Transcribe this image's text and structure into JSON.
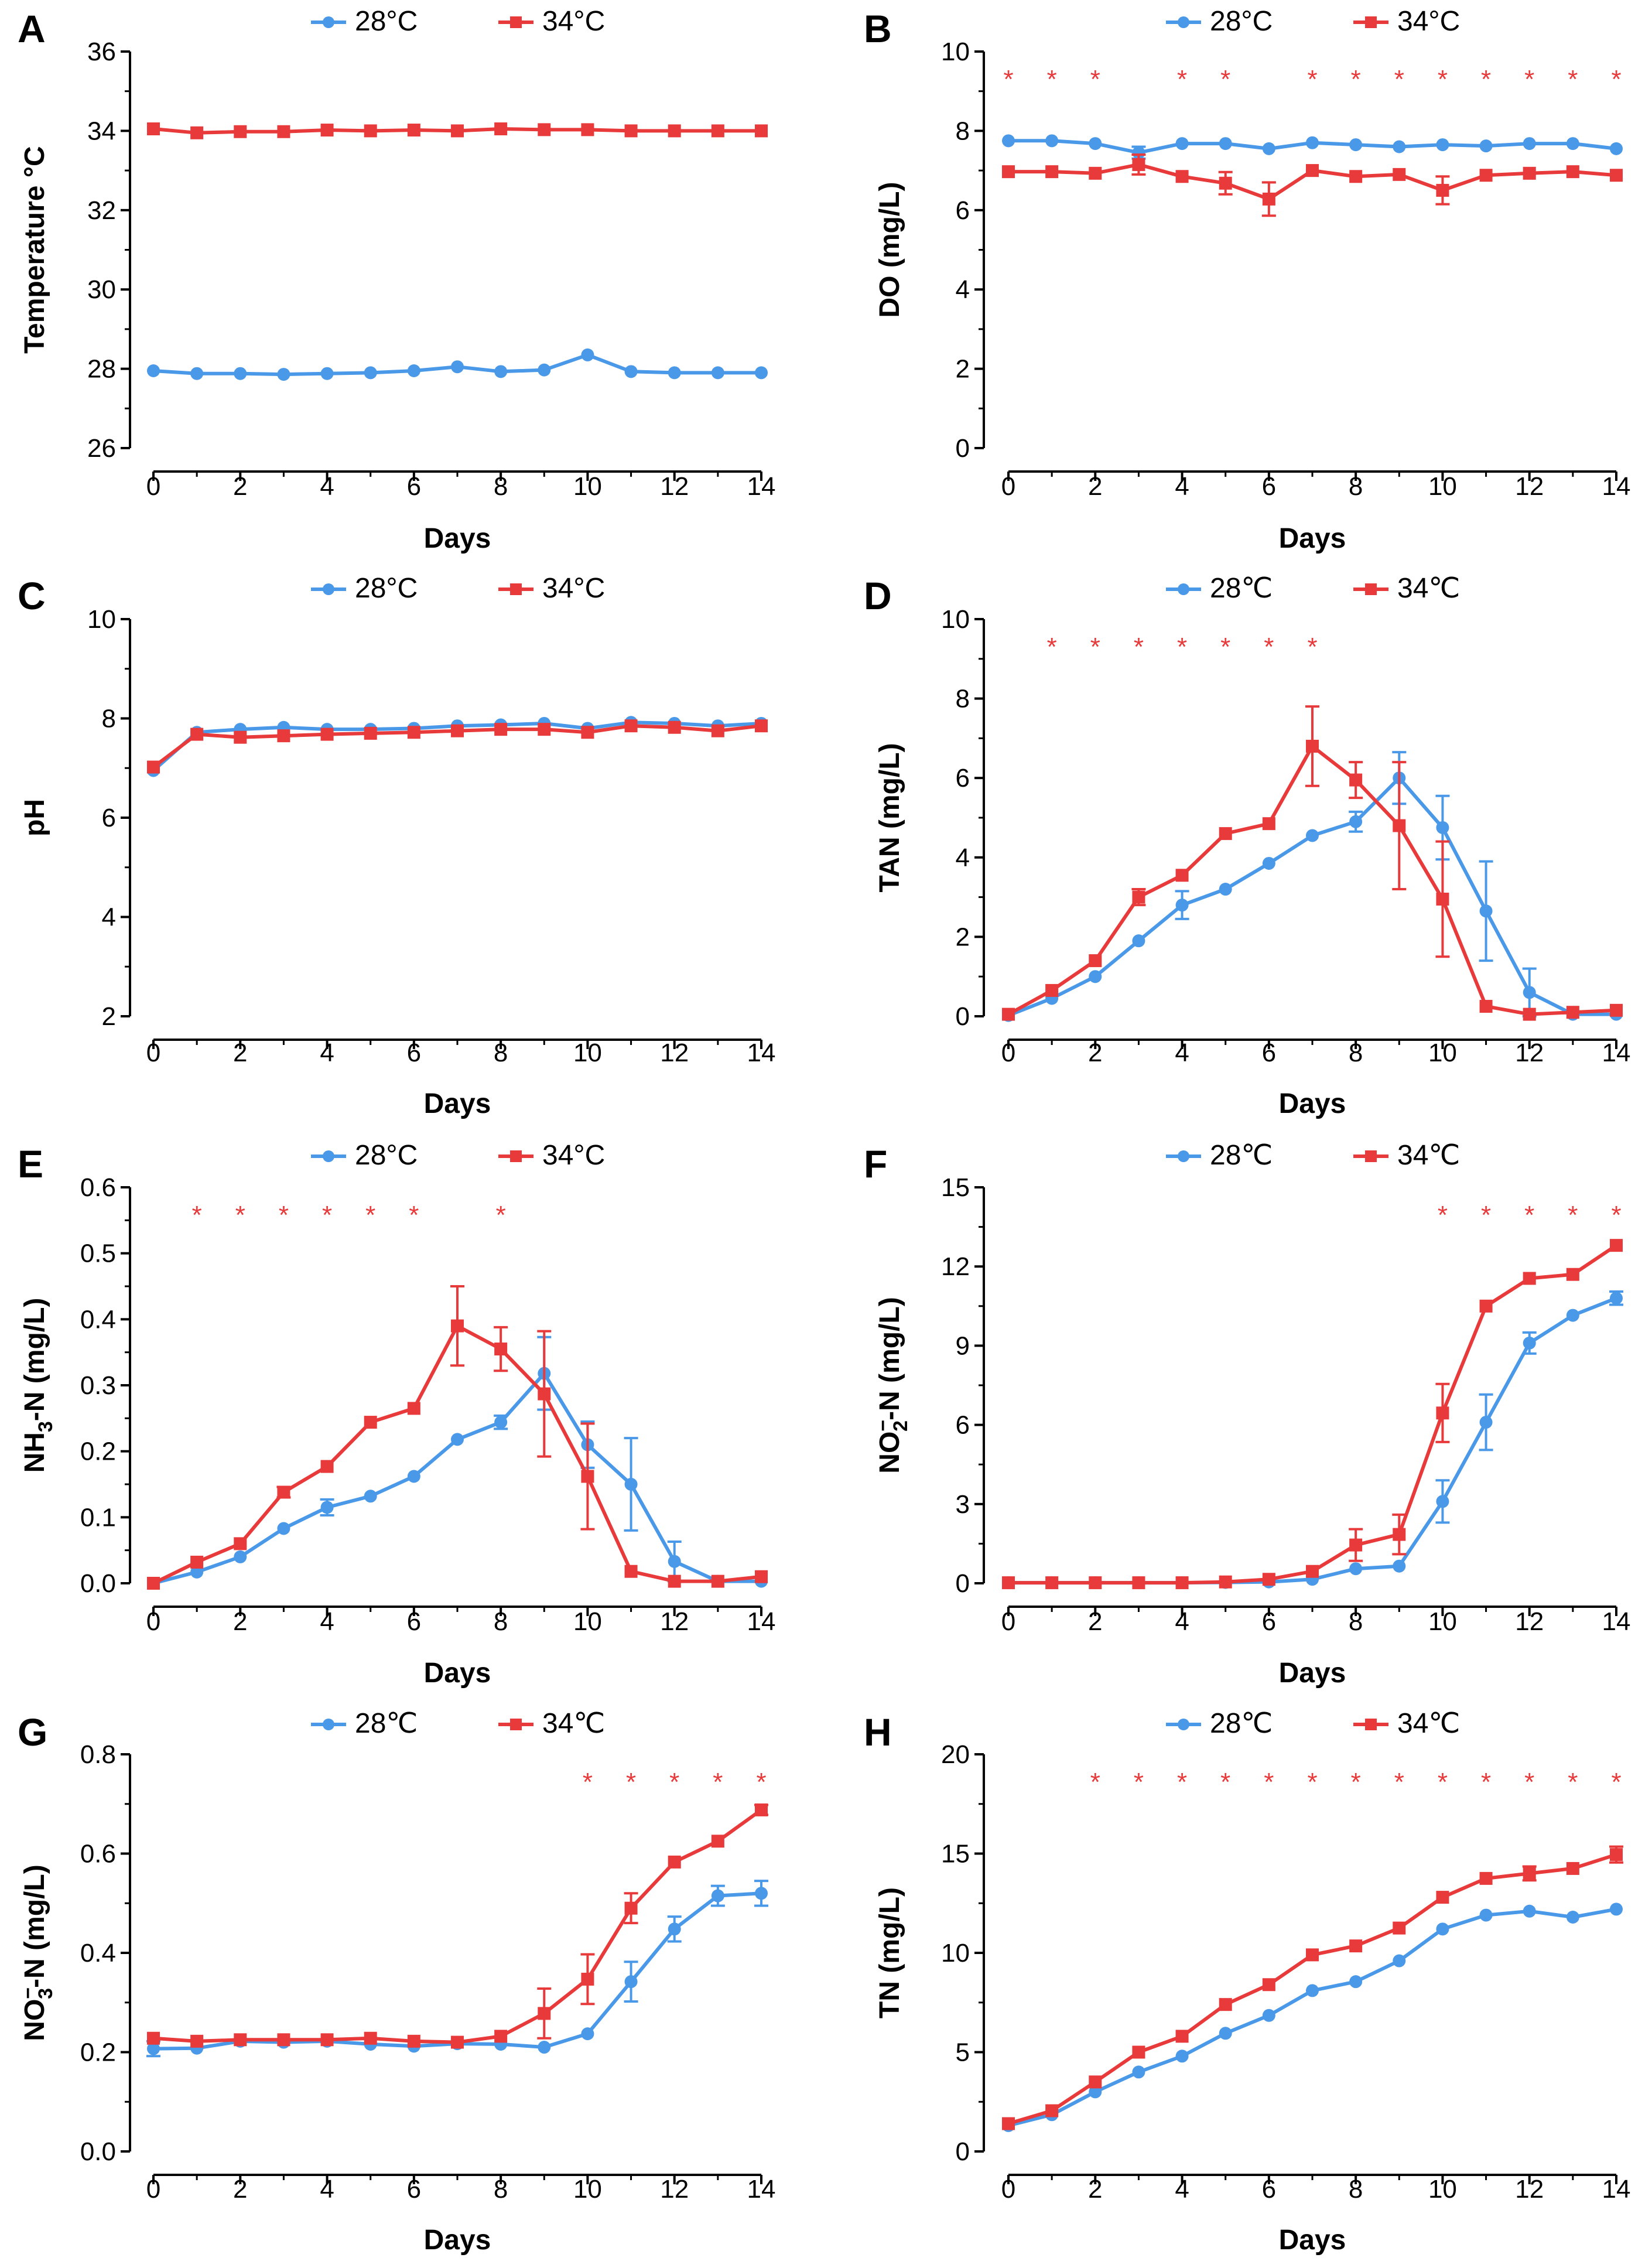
{
  "figure": {
    "xlabel": "Days",
    "colors": {
      "c28": "#4a98e8",
      "c34": "#e83a3a"
    }
  },
  "chart_data": [
    {
      "panel": "A",
      "type": "line",
      "xlabel": "Days",
      "ylabel": "Temperature °C",
      "xlim": [
        0,
        14
      ],
      "xticks": [
        0,
        2,
        4,
        6,
        8,
        10,
        12,
        14
      ],
      "ylim": [
        26,
        36
      ],
      "yticks": [
        "26",
        "28",
        "30",
        "32",
        "34",
        "36"
      ],
      "series": [
        {
          "name": "28°C",
          "color": "#4a98e8",
          "marker": "circle",
          "x": [
            0,
            1,
            2,
            3,
            4,
            5,
            6,
            7,
            8,
            9,
            10,
            11,
            12,
            13,
            14
          ],
          "y": [
            27.95,
            27.88,
            27.88,
            27.86,
            27.88,
            27.9,
            27.95,
            28.05,
            27.93,
            27.97,
            28.35,
            27.93,
            27.9,
            27.9,
            27.9
          ],
          "err": [
            0,
            0,
            0,
            0,
            0,
            0,
            0,
            0,
            0,
            0,
            0,
            0,
            0,
            0,
            0
          ]
        },
        {
          "name": "34°C",
          "color": "#e83a3a",
          "marker": "square",
          "x": [
            0,
            1,
            2,
            3,
            4,
            5,
            6,
            7,
            8,
            9,
            10,
            11,
            12,
            13,
            14
          ],
          "y": [
            34.05,
            33.95,
            33.98,
            33.98,
            34.02,
            34.0,
            34.02,
            34.0,
            34.05,
            34.03,
            34.03,
            34.0,
            34.0,
            34.0,
            34.0
          ],
          "err": [
            0,
            0,
            0,
            0,
            0,
            0,
            0,
            0,
            0,
            0,
            0,
            0,
            0,
            0,
            0
          ]
        }
      ],
      "significance_days": []
    },
    {
      "panel": "B",
      "type": "line",
      "xlabel": "Days",
      "ylabel": "DO (mg/L)",
      "xlim": [
        0,
        14
      ],
      "xticks": [
        0,
        2,
        4,
        6,
        8,
        10,
        12,
        14
      ],
      "ylim": [
        0,
        10
      ],
      "yticks": [
        "0",
        "2",
        "4",
        "6",
        "8",
        "10"
      ],
      "series": [
        {
          "name": "28°C",
          "color": "#4a98e8",
          "marker": "circle",
          "x": [
            0,
            1,
            2,
            3,
            4,
            5,
            6,
            7,
            8,
            9,
            10,
            11,
            12,
            13,
            14
          ],
          "y": [
            7.75,
            7.75,
            7.68,
            7.45,
            7.68,
            7.68,
            7.55,
            7.7,
            7.65,
            7.6,
            7.65,
            7.62,
            7.68,
            7.68,
            7.55
          ],
          "err": [
            0,
            0,
            0,
            0.15,
            0,
            0,
            0,
            0,
            0,
            0,
            0,
            0,
            0,
            0,
            0
          ]
        },
        {
          "name": "34°C",
          "color": "#e83a3a",
          "marker": "square",
          "x": [
            0,
            1,
            2,
            3,
            4,
            5,
            6,
            7,
            8,
            9,
            10,
            11,
            12,
            13,
            14
          ],
          "y": [
            6.97,
            6.97,
            6.93,
            7.15,
            6.85,
            6.68,
            6.28,
            7.0,
            6.85,
            6.9,
            6.5,
            6.88,
            6.93,
            6.97,
            6.88
          ],
          "err": [
            0,
            0,
            0,
            0.25,
            0,
            0.28,
            0.42,
            0,
            0,
            0,
            0.35,
            0,
            0,
            0,
            0
          ]
        }
      ],
      "significance_days": [
        0,
        1,
        2,
        4,
        5,
        7,
        8,
        9,
        10,
        11,
        12,
        13,
        14
      ]
    },
    {
      "panel": "C",
      "type": "line",
      "xlabel": "Days",
      "ylabel": "pH",
      "xlim": [
        0,
        14
      ],
      "xticks": [
        0,
        2,
        4,
        6,
        8,
        10,
        12,
        14
      ],
      "ylim": [
        2,
        10
      ],
      "yticks": [
        "2",
        "4",
        "6",
        "8",
        "10"
      ],
      "series": [
        {
          "name": "28°C",
          "color": "#4a98e8",
          "marker": "circle",
          "x": [
            0,
            1,
            2,
            3,
            4,
            5,
            6,
            7,
            8,
            9,
            10,
            11,
            12,
            13,
            14
          ],
          "y": [
            6.95,
            7.72,
            7.78,
            7.82,
            7.78,
            7.78,
            7.8,
            7.85,
            7.87,
            7.9,
            7.8,
            7.92,
            7.9,
            7.85,
            7.9
          ],
          "err": [
            0,
            0,
            0,
            0,
            0,
            0,
            0,
            0,
            0,
            0,
            0,
            0,
            0,
            0,
            0
          ]
        },
        {
          "name": "34°C",
          "color": "#e83a3a",
          "marker": "square",
          "x": [
            0,
            1,
            2,
            3,
            4,
            5,
            6,
            7,
            8,
            9,
            10,
            11,
            12,
            13,
            14
          ],
          "y": [
            7.02,
            7.68,
            7.62,
            7.65,
            7.68,
            7.7,
            7.72,
            7.75,
            7.78,
            7.78,
            7.72,
            7.85,
            7.82,
            7.75,
            7.85
          ],
          "err": [
            0,
            0,
            0,
            0,
            0,
            0,
            0,
            0,
            0,
            0,
            0,
            0,
            0,
            0,
            0
          ]
        }
      ],
      "significance_days": []
    },
    {
      "panel": "D",
      "type": "line",
      "xlabel": "Days",
      "ylabel": "TAN (mg/L)",
      "xlim": [
        0,
        14
      ],
      "xticks": [
        0,
        2,
        4,
        6,
        8,
        10,
        12,
        14
      ],
      "ylim": [
        0,
        10
      ],
      "yticks": [
        "0",
        "2",
        "4",
        "6",
        "8",
        "10"
      ],
      "series": [
        {
          "name": "28℃",
          "color": "#4a98e8",
          "marker": "circle",
          "x": [
            0,
            1,
            2,
            3,
            4,
            5,
            6,
            7,
            8,
            9,
            10,
            11,
            12,
            13,
            14
          ],
          "y": [
            0.02,
            0.45,
            1.0,
            1.9,
            2.8,
            3.2,
            3.85,
            4.55,
            4.9,
            6.0,
            4.75,
            2.65,
            0.6,
            0.05,
            0.05
          ],
          "err": [
            0,
            0,
            0,
            0,
            0.35,
            0,
            0,
            0,
            0.25,
            0.65,
            0.8,
            1.25,
            0.6,
            0,
            0
          ]
        },
        {
          "name": "34℃",
          "color": "#e83a3a",
          "marker": "square",
          "x": [
            0,
            1,
            2,
            3,
            4,
            5,
            6,
            7,
            8,
            9,
            10,
            11,
            12,
            13,
            14
          ],
          "y": [
            0.05,
            0.65,
            1.4,
            3.0,
            3.55,
            4.6,
            4.85,
            6.8,
            5.95,
            4.8,
            2.95,
            0.25,
            0.05,
            0.1,
            0.15
          ],
          "err": [
            0,
            0,
            0,
            0.2,
            0,
            0,
            0,
            1.0,
            0.45,
            1.6,
            1.45,
            0,
            0,
            0,
            0
          ]
        }
      ],
      "significance_days": [
        1,
        2,
        3,
        4,
        5,
        6,
        7
      ]
    },
    {
      "panel": "E",
      "type": "line",
      "xlabel": "Days",
      "ylabel": "NH3-N (mg/L)",
      "ylabel_main": "NH",
      "ylabel_sub": "3",
      "ylabel_rest": "-N (mg/L)",
      "xlim": [
        0,
        14
      ],
      "xticks": [
        0,
        2,
        4,
        6,
        8,
        10,
        12,
        14
      ],
      "ylim": [
        0,
        0.6
      ],
      "yticks": [
        "0.0",
        "0.1",
        "0.2",
        "0.3",
        "0.4",
        "0.5",
        "0.6"
      ],
      "series": [
        {
          "name": "28°C",
          "color": "#4a98e8",
          "marker": "circle",
          "x": [
            0,
            1,
            2,
            3,
            4,
            5,
            6,
            7,
            8,
            9,
            10,
            11,
            12,
            13,
            14
          ],
          "y": [
            0.0,
            0.017,
            0.04,
            0.083,
            0.115,
            0.132,
            0.162,
            0.218,
            0.244,
            0.318,
            0.21,
            0.15,
            0.033,
            0.003,
            0.003
          ],
          "err": [
            0,
            0,
            0,
            0,
            0.012,
            0,
            0,
            0,
            0.01,
            0.055,
            0.035,
            0.07,
            0.03,
            0,
            0
          ]
        },
        {
          "name": "34°C",
          "color": "#e83a3a",
          "marker": "square",
          "x": [
            0,
            1,
            2,
            3,
            4,
            5,
            6,
            7,
            8,
            9,
            10,
            11,
            12,
            13,
            14
          ],
          "y": [
            0.0,
            0.032,
            0.06,
            0.138,
            0.177,
            0.244,
            0.265,
            0.39,
            0.355,
            0.287,
            0.162,
            0.018,
            0.003,
            0.003,
            0.01
          ],
          "err": [
            0,
            0,
            0,
            0.008,
            0,
            0,
            0,
            0.06,
            0.033,
            0.095,
            0.08,
            0,
            0,
            0,
            0
          ]
        }
      ],
      "significance_days": [
        1,
        2,
        3,
        4,
        5,
        6,
        8
      ]
    },
    {
      "panel": "F",
      "type": "line",
      "xlabel": "Days",
      "ylabel": "NO2⁻-N (mg/L)",
      "ylabel_main": "NO",
      "ylabel_sub": "2",
      "ylabel_sup": "−",
      "ylabel_rest": "-N (mg/L)",
      "xlim": [
        0,
        14
      ],
      "xticks": [
        0,
        2,
        4,
        6,
        8,
        10,
        12,
        14
      ],
      "ylim": [
        0,
        15
      ],
      "yticks": [
        "0",
        "3",
        "6",
        "9",
        "12",
        "15"
      ],
      "series": [
        {
          "name": "28℃",
          "color": "#4a98e8",
          "marker": "circle",
          "x": [
            0,
            1,
            2,
            3,
            4,
            5,
            6,
            7,
            8,
            9,
            10,
            11,
            12,
            13,
            14
          ],
          "y": [
            0.02,
            0.02,
            0.02,
            0.02,
            0.02,
            0.03,
            0.05,
            0.15,
            0.55,
            0.65,
            3.1,
            6.1,
            9.1,
            10.15,
            10.8
          ],
          "err": [
            0,
            0,
            0,
            0,
            0,
            0,
            0,
            0,
            0,
            0,
            0.8,
            1.05,
            0.4,
            0,
            0.25
          ]
        },
        {
          "name": "34℃",
          "color": "#e83a3a",
          "marker": "square",
          "x": [
            0,
            1,
            2,
            3,
            4,
            5,
            6,
            7,
            8,
            9,
            10,
            11,
            12,
            13,
            14
          ],
          "y": [
            0.02,
            0.02,
            0.02,
            0.02,
            0.02,
            0.05,
            0.15,
            0.45,
            1.45,
            1.85,
            6.45,
            10.5,
            11.55,
            11.7,
            12.8
          ],
          "err": [
            0,
            0,
            0,
            0,
            0,
            0,
            0,
            0,
            0.6,
            0.75,
            1.1,
            0,
            0,
            0,
            0
          ]
        }
      ],
      "significance_days": [
        10,
        11,
        12,
        13,
        14
      ]
    },
    {
      "panel": "G",
      "type": "line",
      "xlabel": "Days",
      "ylabel": "NO3⁻-N (mg/L)",
      "ylabel_main": "NO",
      "ylabel_sub": "3",
      "ylabel_sup": "−",
      "ylabel_rest": "-N (mg/L)",
      "xlim": [
        0,
        14
      ],
      "xticks": [
        0,
        2,
        4,
        6,
        8,
        10,
        12,
        14
      ],
      "ylim": [
        0,
        0.8
      ],
      "yticks": [
        "0.0",
        "0.2",
        "0.4",
        "0.6",
        "0.8"
      ],
      "series": [
        {
          "name": "28℃",
          "color": "#4a98e8",
          "marker": "circle",
          "x": [
            0,
            1,
            2,
            3,
            4,
            5,
            6,
            7,
            8,
            9,
            10,
            11,
            12,
            13,
            14
          ],
          "y": [
            0.207,
            0.208,
            0.222,
            0.22,
            0.222,
            0.216,
            0.212,
            0.217,
            0.216,
            0.21,
            0.237,
            0.342,
            0.448,
            0.515,
            0.52
          ],
          "err": [
            0.015,
            0,
            0,
            0,
            0,
            0,
            0,
            0,
            0,
            0,
            0,
            0.04,
            0.025,
            0.02,
            0.025
          ]
        },
        {
          "name": "34℃",
          "color": "#e83a3a",
          "marker": "square",
          "x": [
            0,
            1,
            2,
            3,
            4,
            5,
            6,
            7,
            8,
            9,
            10,
            11,
            12,
            13,
            14
          ],
          "y": [
            0.228,
            0.222,
            0.225,
            0.225,
            0.225,
            0.228,
            0.222,
            0.22,
            0.232,
            0.278,
            0.347,
            0.49,
            0.583,
            0.625,
            0.688
          ],
          "err": [
            0,
            0,
            0,
            0,
            0,
            0,
            0,
            0,
            0,
            0.05,
            0.05,
            0.03,
            0,
            0,
            0.01
          ]
        }
      ],
      "significance_days": [
        10,
        11,
        12,
        13,
        14
      ]
    },
    {
      "panel": "H",
      "type": "line",
      "xlabel": "Days",
      "ylabel": "TN (mg/L)",
      "xlim": [
        0,
        14
      ],
      "xticks": [
        0,
        2,
        4,
        6,
        8,
        10,
        12,
        14
      ],
      "ylim": [
        0,
        20
      ],
      "yticks": [
        "0",
        "5",
        "10",
        "15",
        "20"
      ],
      "series": [
        {
          "name": "28℃",
          "color": "#4a98e8",
          "marker": "circle",
          "x": [
            0,
            1,
            2,
            3,
            4,
            5,
            6,
            7,
            8,
            9,
            10,
            11,
            12,
            13,
            14
          ],
          "y": [
            1.3,
            1.85,
            3.0,
            4.0,
            4.8,
            5.95,
            6.85,
            8.1,
            8.55,
            9.6,
            11.2,
            11.9,
            12.1,
            11.8,
            12.2
          ],
          "err": [
            0,
            0,
            0,
            0,
            0,
            0,
            0,
            0,
            0,
            0,
            0,
            0,
            0,
            0,
            0
          ]
        },
        {
          "name": "34℃",
          "color": "#e83a3a",
          "marker": "square",
          "x": [
            0,
            1,
            2,
            3,
            4,
            5,
            6,
            7,
            8,
            9,
            10,
            11,
            12,
            13,
            14
          ],
          "y": [
            1.4,
            2.05,
            3.5,
            5.0,
            5.8,
            7.4,
            8.4,
            9.9,
            10.35,
            11.25,
            12.8,
            13.75,
            14.0,
            14.25,
            14.95
          ],
          "err": [
            0,
            0,
            0,
            0,
            0,
            0,
            0,
            0,
            0,
            0,
            0,
            0,
            0.35,
            0,
            0.4
          ]
        }
      ],
      "significance_days": [
        2,
        3,
        4,
        5,
        6,
        7,
        8,
        9,
        10,
        11,
        12,
        13,
        14
      ]
    }
  ]
}
